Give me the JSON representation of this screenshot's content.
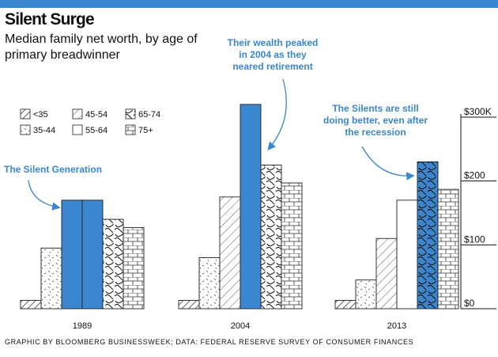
{
  "header": {
    "title": "Silent Surge",
    "subtitle": "Median family net worth, by age of primary breadwinner"
  },
  "footer": {
    "source": "GRAPHIC BY BLOOMBERG BUSINESSWEEK; DATA: FEDERAL RESERVE SURVEY OF CONSUMER FINANCES"
  },
  "colors": {
    "accent": "#3a87d0",
    "bar_outline": "#222222",
    "background": "#ffffff"
  },
  "chart_data": {
    "type": "bar",
    "title": "Silent Surge",
    "subtitle": "Median family net worth, by age of primary breadwinner",
    "categories": [
      "1989",
      "2004",
      "2013"
    ],
    "series": [
      {
        "name": "<35",
        "pattern": "hatch",
        "values": [
          13,
          13,
          13
        ]
      },
      {
        "name": "35-44",
        "pattern": "dash",
        "values": [
          95,
          80,
          45
        ]
      },
      {
        "name": "45-54",
        "pattern": "hatch2",
        "values": [
          170,
          175,
          110
        ]
      },
      {
        "name": "55-64",
        "pattern": "blank",
        "values": [
          170,
          320,
          170
        ]
      },
      {
        "name": "65-74",
        "pattern": "wave",
        "values": [
          140,
          225,
          230
        ]
      },
      {
        "name": "75+",
        "pattern": "brick",
        "values": [
          127,
          197,
          187
        ]
      }
    ],
    "highlight_series": [
      "55-64",
      "65-74"
    ],
    "highlight_cells": [
      [
        0,
        2
      ],
      [
        0,
        3
      ],
      [
        1,
        3
      ],
      [
        2,
        4
      ]
    ],
    "yaxis": {
      "ticks": [
        0,
        100,
        200,
        300
      ],
      "tick_labels": [
        "$0",
        "$100",
        "$200",
        "$300K"
      ],
      "ylim": [
        0,
        300
      ],
      "position": "right"
    },
    "legend": [
      {
        "label": "<35",
        "pattern": "hatch"
      },
      {
        "label": "45-54",
        "pattern": "hatch2"
      },
      {
        "label": "65-74",
        "pattern": "wave"
      },
      {
        "label": "35-44",
        "pattern": "dash"
      },
      {
        "label": "55-64",
        "pattern": "blank"
      },
      {
        "label": "75+",
        "pattern": "brick"
      }
    ],
    "legend_position": "top-left",
    "annotations": [
      {
        "name": "annotation-silent-generation",
        "lines": [
          "The Silent Generation"
        ]
      },
      {
        "name": "annotation-2004-peak",
        "lines": [
          "Their wealth peaked",
          "in 2004 as they",
          "neared retirement"
        ]
      },
      {
        "name": "annotation-2013",
        "lines": [
          "The Silents are still",
          "doing better, even after",
          "the recession"
        ]
      }
    ],
    "grid": false
  }
}
